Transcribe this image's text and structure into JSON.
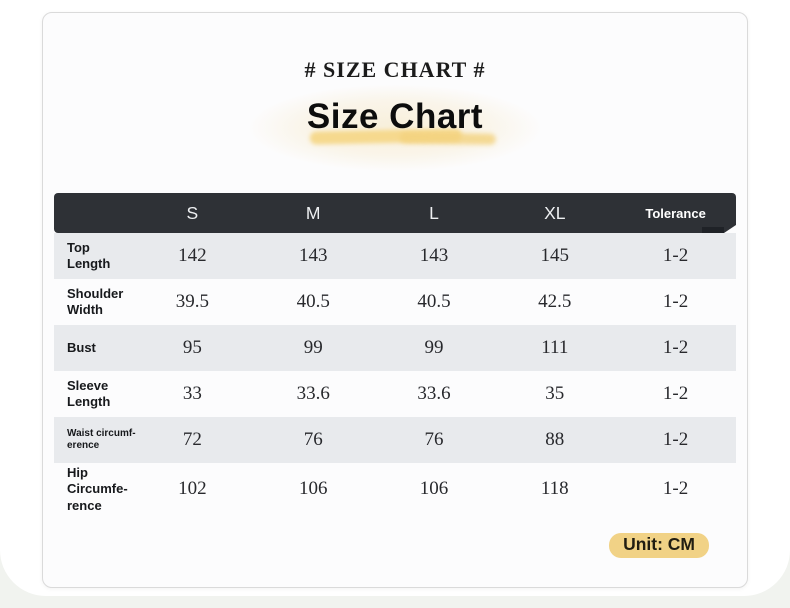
{
  "header": {
    "eyebrow": "# SIZE CHART #",
    "title": "Size Chart"
  },
  "table": {
    "columns": [
      "S",
      "M",
      "L",
      "XL",
      "Tolerance"
    ],
    "rows": [
      {
        "label": "Top\nLength",
        "values": [
          "142",
          "143",
          "143",
          "145",
          "1-2"
        ]
      },
      {
        "label": "Shoulder\nWidth",
        "values": [
          "39.5",
          "40.5",
          "40.5",
          "42.5",
          "1-2"
        ]
      },
      {
        "label": "Bust",
        "values": [
          "95",
          "99",
          "99",
          "111",
          "1-2"
        ]
      },
      {
        "label": "Sleeve\nLength",
        "values": [
          "33",
          "33.6",
          "33.6",
          "35",
          "1-2"
        ]
      },
      {
        "label": "Waist circumf-\nerence",
        "values": [
          "72",
          "76",
          "76",
          "88",
          "1-2"
        ]
      },
      {
        "label": "Hip\nCircumfe-\nrence",
        "values": [
          "102",
          "106",
          "106",
          "118",
          "1-2"
        ]
      }
    ]
  },
  "footer": {
    "unit_label": "Unit: CM"
  },
  "colors": {
    "header_dark": "#2e3136",
    "row_alt_gray": "#e8eaed",
    "accent_yellow": "#f1d286",
    "brush_yellow": "#f6d98e",
    "page_strip": "#f1f3ef",
    "card_bg": "#fcfcfd",
    "card_border": "#dadada"
  }
}
